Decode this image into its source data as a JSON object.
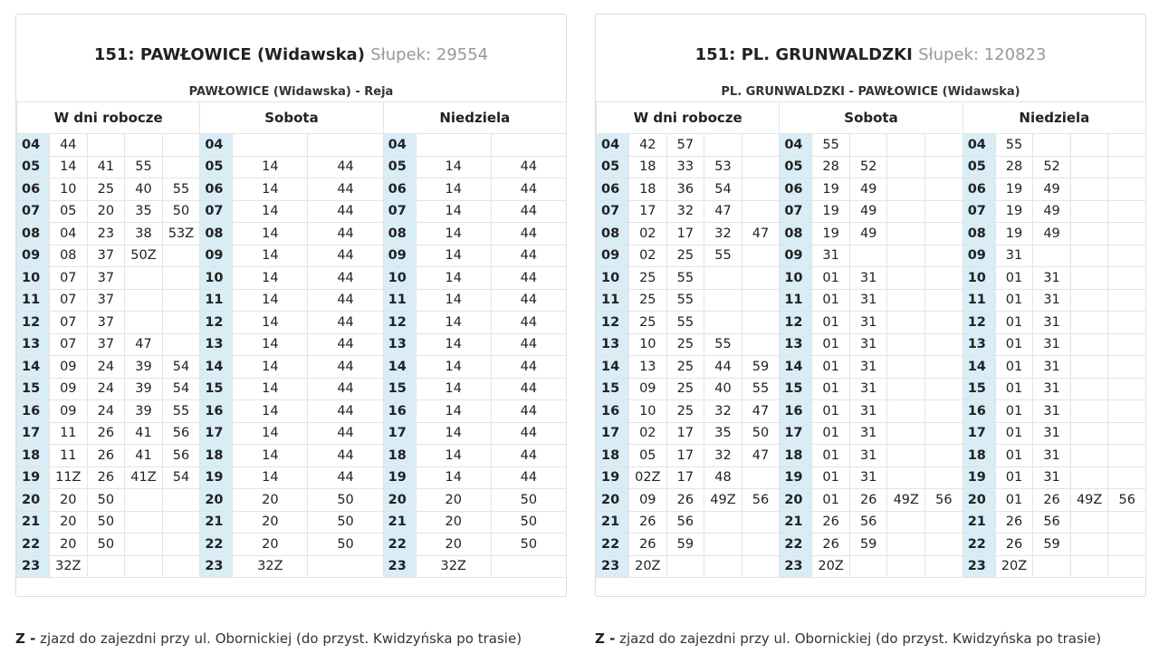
{
  "days": {
    "weekday": "W dni robocze",
    "saturday": "Sobota",
    "sunday": "Niedziela"
  },
  "legend_text": "zjazd do zajezdni przy ul. Obornickiej (do przyst. Kwidzyńska po trasie)",
  "legend_key": "Z -",
  "panels": [
    {
      "title": "151: PAWŁOWICE (Widawska)",
      "stop": "Słupek: 29554",
      "route": "PAWŁOWICE (Widawska) - Reja",
      "weekday_cols": 4,
      "weekend_cols": 2,
      "hours": [
        "04",
        "05",
        "06",
        "07",
        "08",
        "09",
        "10",
        "11",
        "12",
        "13",
        "14",
        "15",
        "16",
        "17",
        "18",
        "19",
        "20",
        "21",
        "22",
        "23"
      ],
      "weekday": [
        [
          "44"
        ],
        [
          "14",
          "41",
          "55"
        ],
        [
          "10",
          "25",
          "40",
          "55"
        ],
        [
          "05",
          "20",
          "35",
          "50"
        ],
        [
          "04",
          "23",
          "38",
          "53Z"
        ],
        [
          "08",
          "37",
          "50Z"
        ],
        [
          "07",
          "37"
        ],
        [
          "07",
          "37"
        ],
        [
          "07",
          "37"
        ],
        [
          "07",
          "37",
          "47"
        ],
        [
          "09",
          "24",
          "39",
          "54"
        ],
        [
          "09",
          "24",
          "39",
          "54"
        ],
        [
          "09",
          "24",
          "39",
          "55"
        ],
        [
          "11",
          "26",
          "41",
          "56"
        ],
        [
          "11",
          "26",
          "41",
          "56"
        ],
        [
          "11Z",
          "26",
          "41Z",
          "54"
        ],
        [
          "20",
          "50"
        ],
        [
          "20",
          "50"
        ],
        [
          "20",
          "50"
        ],
        [
          "32Z"
        ]
      ],
      "saturday": [
        [],
        [
          "14",
          "44"
        ],
        [
          "14",
          "44"
        ],
        [
          "14",
          "44"
        ],
        [
          "14",
          "44"
        ],
        [
          "14",
          "44"
        ],
        [
          "14",
          "44"
        ],
        [
          "14",
          "44"
        ],
        [
          "14",
          "44"
        ],
        [
          "14",
          "44"
        ],
        [
          "14",
          "44"
        ],
        [
          "14",
          "44"
        ],
        [
          "14",
          "44"
        ],
        [
          "14",
          "44"
        ],
        [
          "14",
          "44"
        ],
        [
          "14",
          "44"
        ],
        [
          "20",
          "50"
        ],
        [
          "20",
          "50"
        ],
        [
          "20",
          "50"
        ],
        [
          "32Z"
        ]
      ],
      "sunday": [
        [],
        [
          "14",
          "44"
        ],
        [
          "14",
          "44"
        ],
        [
          "14",
          "44"
        ],
        [
          "14",
          "44"
        ],
        [
          "14",
          "44"
        ],
        [
          "14",
          "44"
        ],
        [
          "14",
          "44"
        ],
        [
          "14",
          "44"
        ],
        [
          "14",
          "44"
        ],
        [
          "14",
          "44"
        ],
        [
          "14",
          "44"
        ],
        [
          "14",
          "44"
        ],
        [
          "14",
          "44"
        ],
        [
          "14",
          "44"
        ],
        [
          "14",
          "44"
        ],
        [
          "20",
          "50"
        ],
        [
          "20",
          "50"
        ],
        [
          "20",
          "50"
        ],
        [
          "32Z"
        ]
      ]
    },
    {
      "title": "151: PL. GRUNWALDZKI",
      "stop": "Słupek: 120823",
      "route": "PL. GRUNWALDZKI - PAWŁOWICE (Widawska)",
      "weekday_cols": 4,
      "weekend_cols": 4,
      "hours": [
        "04",
        "05",
        "06",
        "07",
        "08",
        "09",
        "10",
        "11",
        "12",
        "13",
        "14",
        "15",
        "16",
        "17",
        "18",
        "19",
        "20",
        "21",
        "22",
        "23"
      ],
      "weekday": [
        [
          "42",
          "57"
        ],
        [
          "18",
          "33",
          "53"
        ],
        [
          "18",
          "36",
          "54"
        ],
        [
          "17",
          "32",
          "47"
        ],
        [
          "02",
          "17",
          "32",
          "47"
        ],
        [
          "02",
          "25",
          "55"
        ],
        [
          "25",
          "55"
        ],
        [
          "25",
          "55"
        ],
        [
          "25",
          "55"
        ],
        [
          "10",
          "25",
          "55"
        ],
        [
          "13",
          "25",
          "44",
          "59"
        ],
        [
          "09",
          "25",
          "40",
          "55"
        ],
        [
          "10",
          "25",
          "32",
          "47"
        ],
        [
          "02",
          "17",
          "35",
          "50"
        ],
        [
          "05",
          "17",
          "32",
          "47"
        ],
        [
          "02Z",
          "17",
          "48"
        ],
        [
          "09",
          "26",
          "49Z",
          "56"
        ],
        [
          "26",
          "56"
        ],
        [
          "26",
          "59"
        ],
        [
          "20Z"
        ]
      ],
      "saturday": [
        [
          "55"
        ],
        [
          "28",
          "52"
        ],
        [
          "19",
          "49"
        ],
        [
          "19",
          "49"
        ],
        [
          "19",
          "49"
        ],
        [
          "31"
        ],
        [
          "01",
          "31"
        ],
        [
          "01",
          "31"
        ],
        [
          "01",
          "31"
        ],
        [
          "01",
          "31"
        ],
        [
          "01",
          "31"
        ],
        [
          "01",
          "31"
        ],
        [
          "01",
          "31"
        ],
        [
          "01",
          "31"
        ],
        [
          "01",
          "31"
        ],
        [
          "01",
          "31"
        ],
        [
          "01",
          "26",
          "49Z",
          "56"
        ],
        [
          "26",
          "56"
        ],
        [
          "26",
          "59"
        ],
        [
          "20Z"
        ]
      ],
      "sunday": [
        [
          "55"
        ],
        [
          "28",
          "52"
        ],
        [
          "19",
          "49"
        ],
        [
          "19",
          "49"
        ],
        [
          "19",
          "49"
        ],
        [
          "31"
        ],
        [
          "01",
          "31"
        ],
        [
          "01",
          "31"
        ],
        [
          "01",
          "31"
        ],
        [
          "01",
          "31"
        ],
        [
          "01",
          "31"
        ],
        [
          "01",
          "31"
        ],
        [
          "01",
          "31"
        ],
        [
          "01",
          "31"
        ],
        [
          "01",
          "31"
        ],
        [
          "01",
          "31"
        ],
        [
          "01",
          "26",
          "49Z",
          "56"
        ],
        [
          "26",
          "56"
        ],
        [
          "26",
          "59"
        ],
        [
          "20Z"
        ]
      ]
    }
  ]
}
